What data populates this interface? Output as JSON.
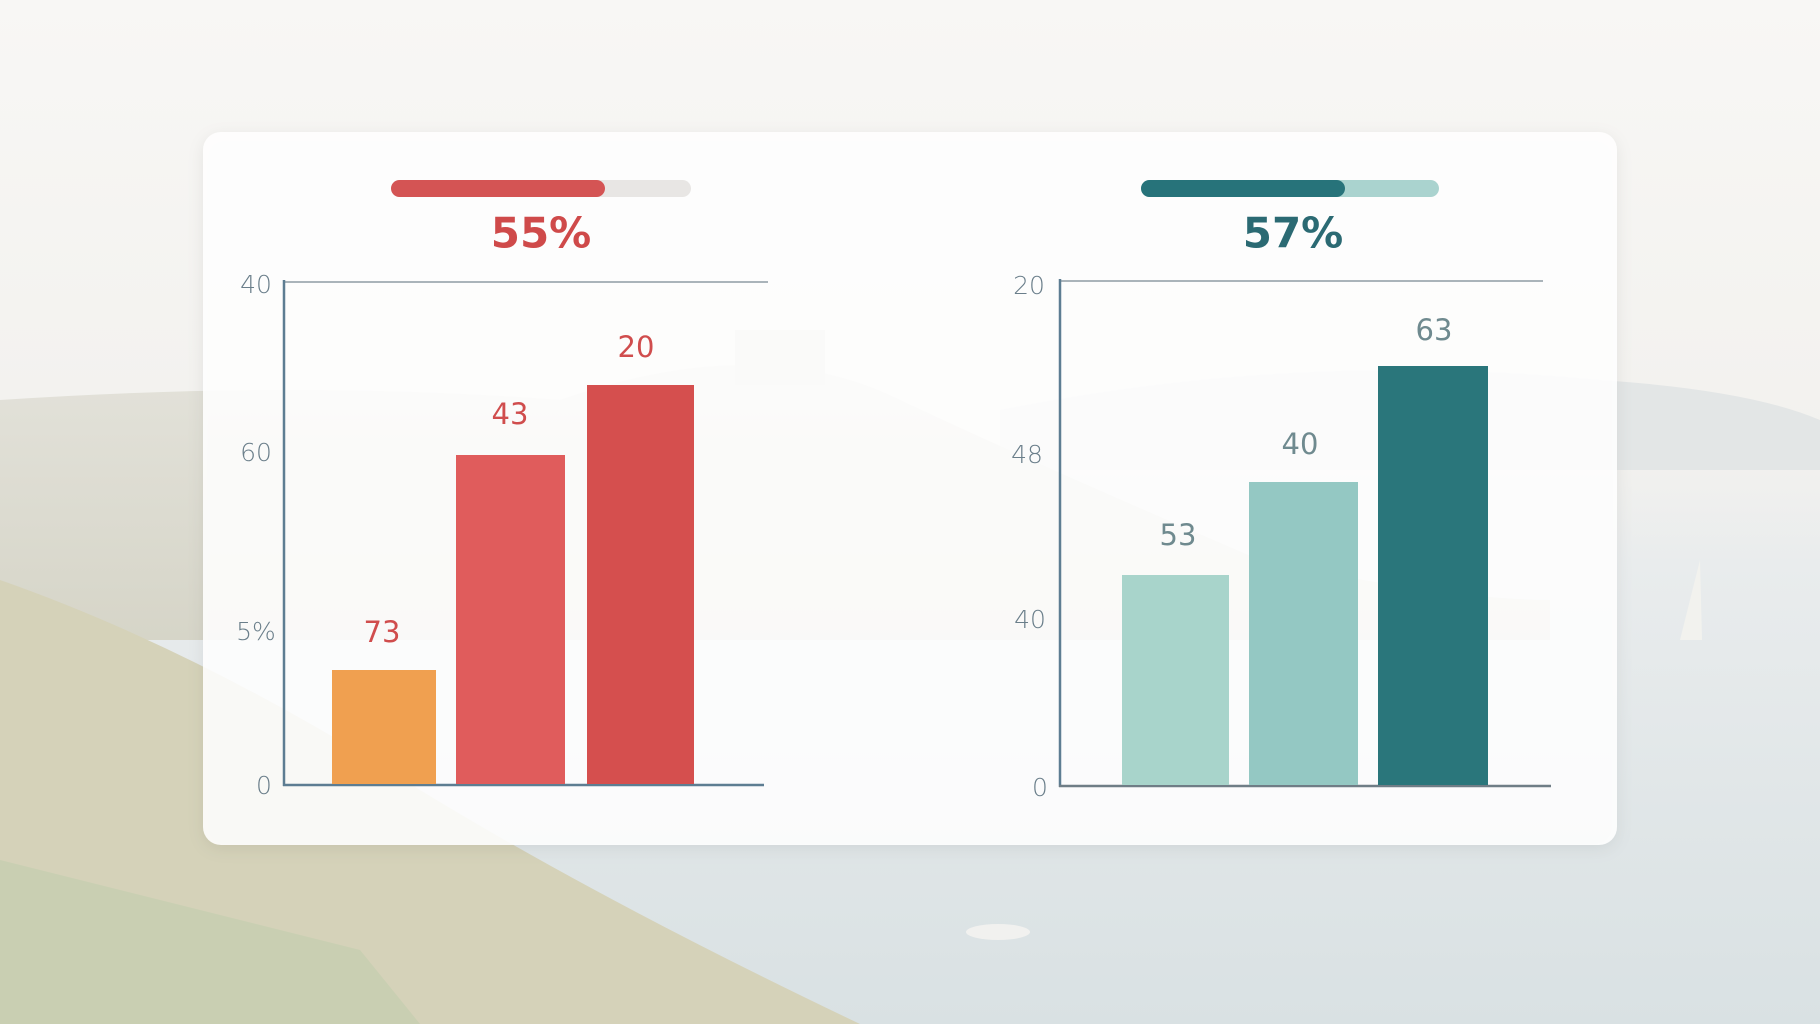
{
  "panels": [
    {
      "progress_label": "55%",
      "y_axis_labels": [
        "40",
        "60",
        "5%",
        "0"
      ],
      "bar_labels": [
        "73",
        "43",
        "20"
      ]
    },
    {
      "progress_label": "57%",
      "y_axis_labels": [
        "20",
        "48",
        "40",
        "0"
      ],
      "bar_labels": [
        "53",
        "40",
        "63"
      ]
    }
  ]
}
